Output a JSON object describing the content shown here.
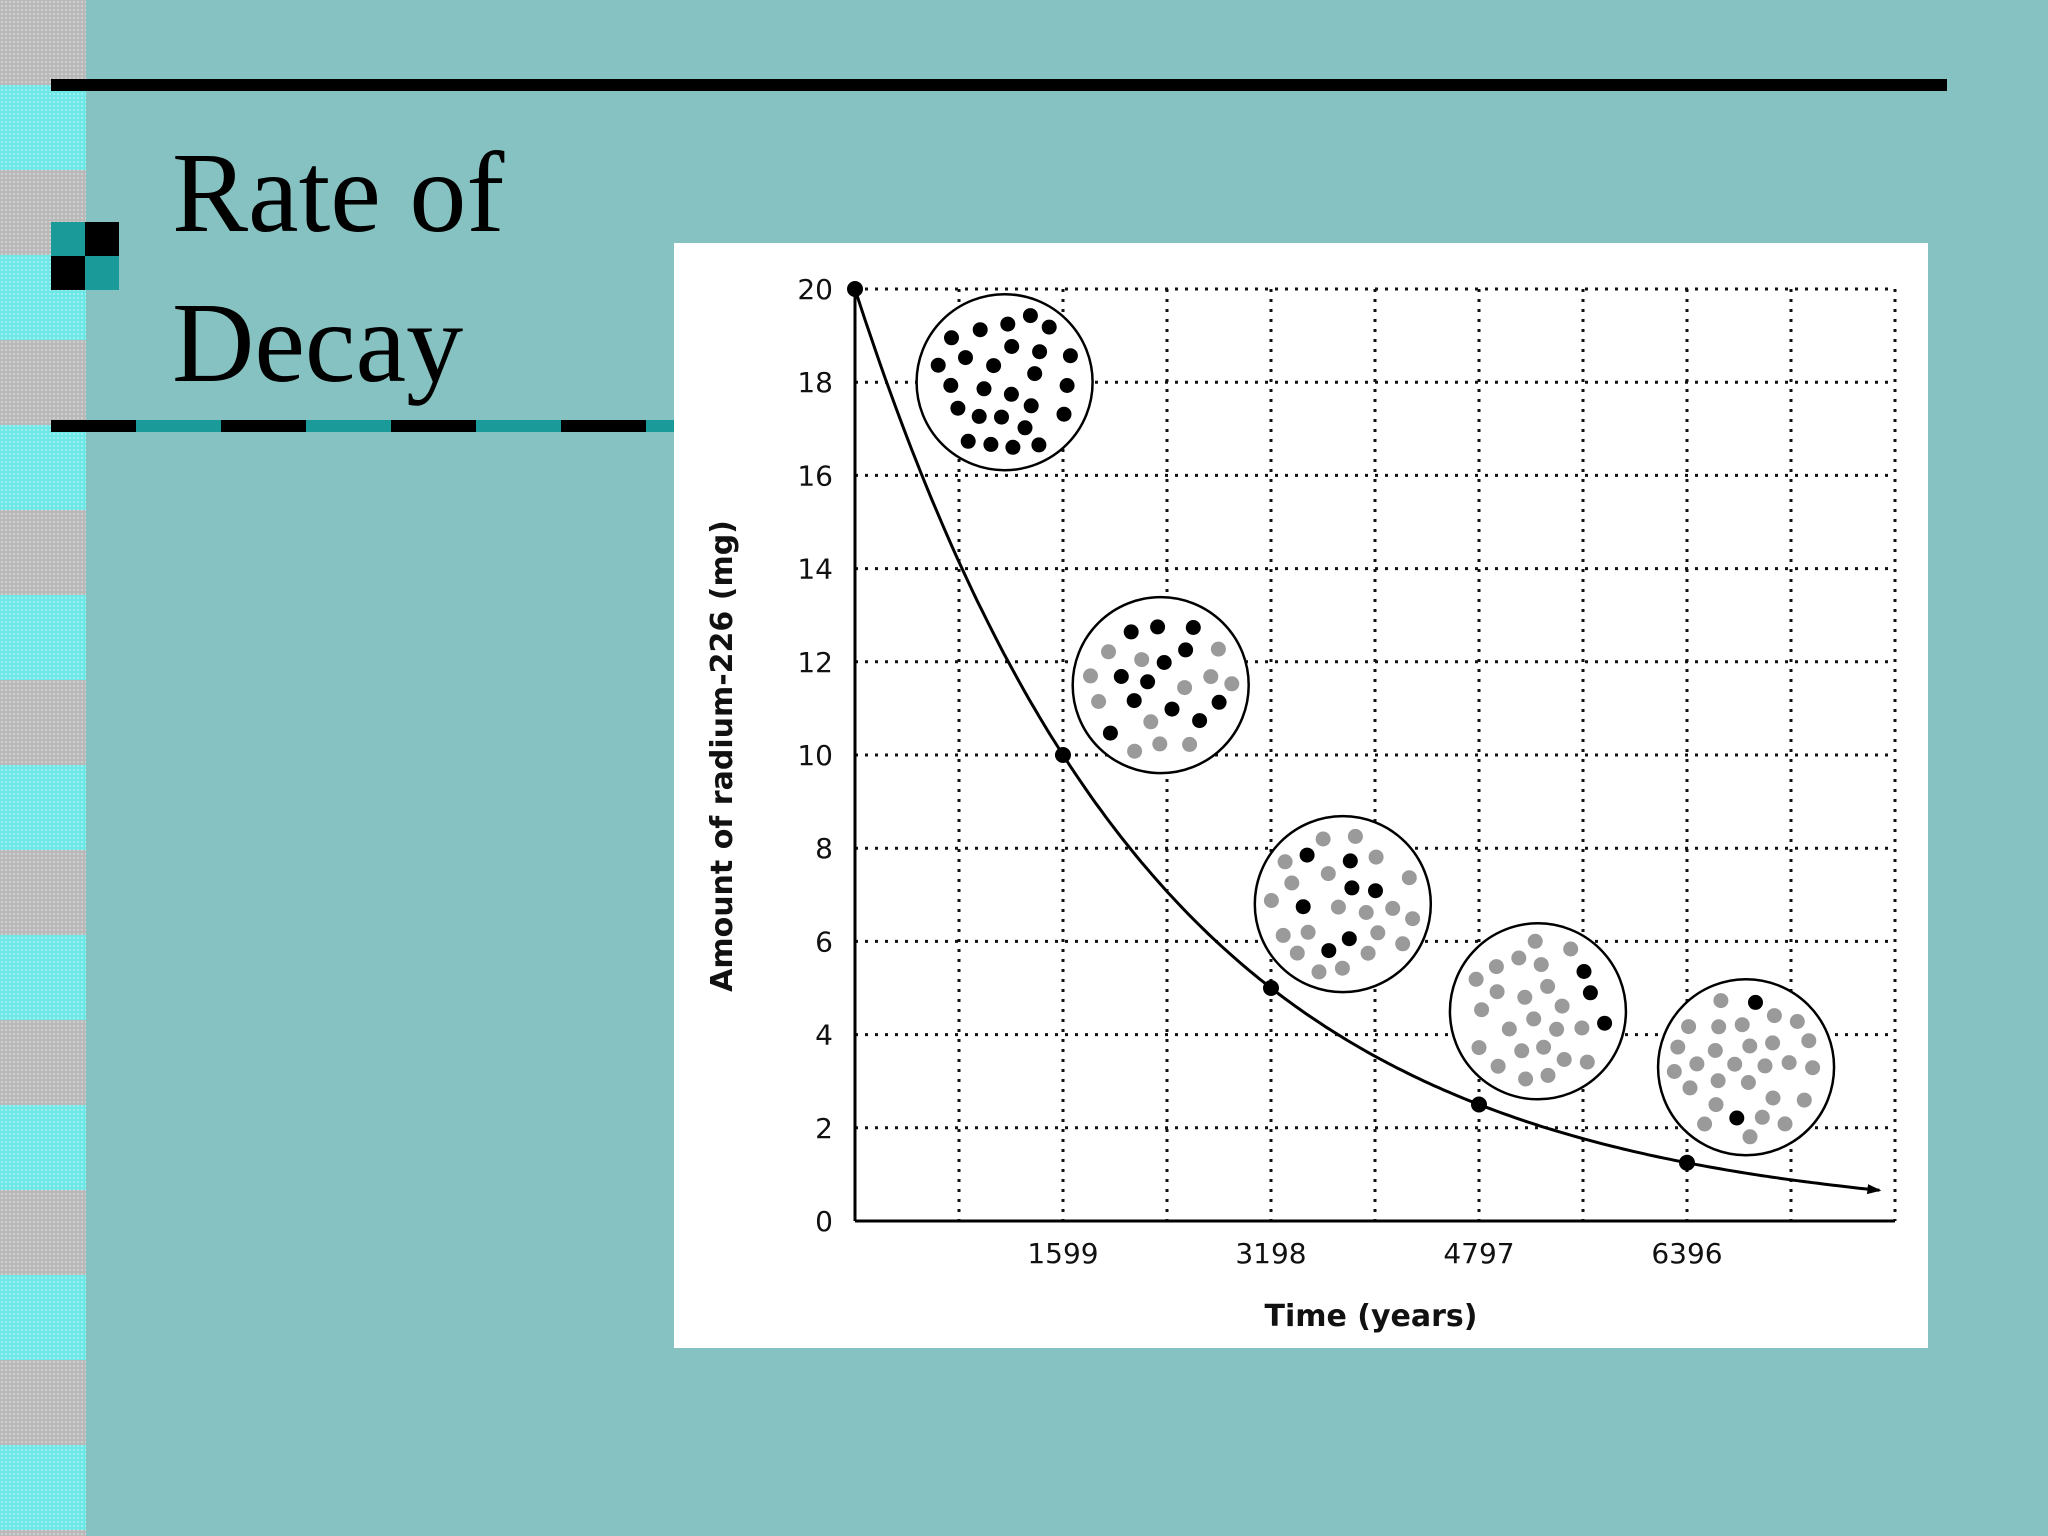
{
  "slide": {
    "title_line1": "Rate of",
    "title_line2": "Decay"
  },
  "colors": {
    "background": "#86c2c1",
    "accent_teal": "#1a9a98",
    "decayed_atom": "#9a9a9a",
    "radium_atom": "#000000"
  },
  "chart_data": {
    "type": "line",
    "xlabel": "Time (years)",
    "ylabel": "Amount of radium-226 (mg)",
    "x_tick_labels": [
      "1599",
      "3198",
      "4797",
      "6396"
    ],
    "x_ticks": [
      1599,
      3198,
      4797,
      6396
    ],
    "y_ticks": [
      0,
      2,
      4,
      6,
      8,
      10,
      12,
      14,
      16,
      18,
      20
    ],
    "xlim": [
      0,
      7995
    ],
    "ylim": [
      0,
      20
    ],
    "grid": true,
    "half_life": 1599,
    "initial_amount": 20,
    "series": [
      {
        "x": [
          0,
          1599,
          3198,
          4797,
          6396
        ],
        "y": [
          20,
          10,
          5,
          2.5,
          1.25
        ]
      }
    ],
    "atom_samples": [
      {
        "x": 1150,
        "y": 18.0,
        "radium_fraction": 1.0
      },
      {
        "x": 2350,
        "y": 11.5,
        "radium_fraction": 0.5
      },
      {
        "x": 3750,
        "y": 6.8,
        "radium_fraction": 0.25
      },
      {
        "x": 5250,
        "y": 4.5,
        "radium_fraction": 0.125
      },
      {
        "x": 6850,
        "y": 3.3,
        "radium_fraction": 0.0625
      }
    ]
  }
}
